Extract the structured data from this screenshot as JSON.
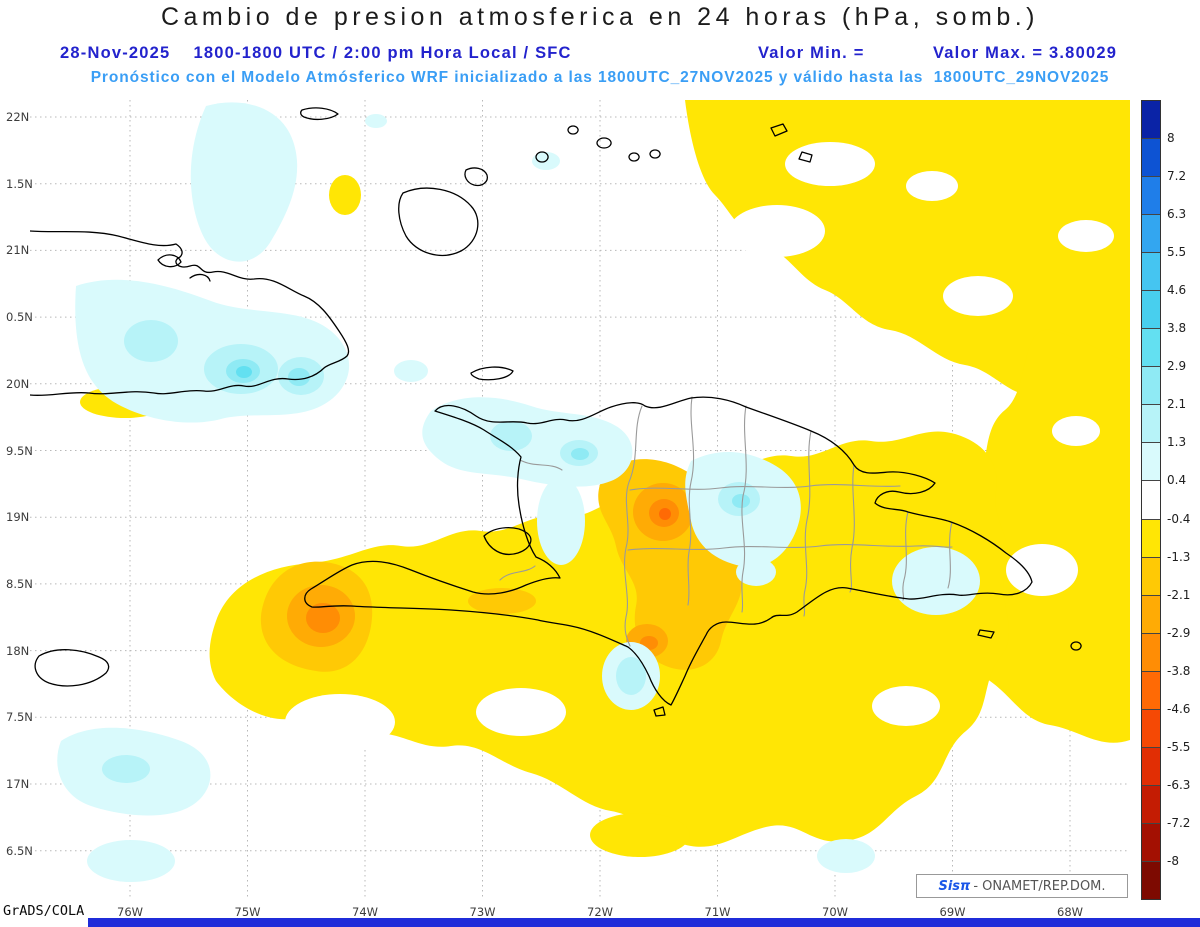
{
  "theme": {
    "title-color": "#1c1c1c",
    "date-blue": "#2323cd",
    "forecast-blue": "#3a9ef5",
    "logo-blue": "#1a56e8",
    "bottom-bar-blue": "#1f2cd9",
    "grid-gray": "#b8b8b8"
  },
  "header": {
    "title": "Cambio de presion atmosferica en 24 horas (hPa, somb.)",
    "date_time": "28-Nov-2025    1800-1800 UTC / 2:00 pm Hora Local / SFC",
    "min_label": "Valor Min. =",
    "min_value": "",
    "max_label": "Valor Max. = 3.80029",
    "forecast_line": "Pronóstico con el Modelo Atmósferico WRF inicializado a las 1800UTC_27NOV2025 y válido hasta las  1800UTC_29NOV2025"
  },
  "axes": {
    "lat_labels": [
      "22N",
      "1.5N",
      "21N",
      "0.5N",
      "20N",
      "9.5N",
      "19N",
      "8.5N",
      "18N",
      "7.5N",
      "17N",
      "6.5N"
    ],
    "lon_labels": [
      "76W",
      "75W",
      "74W",
      "73W",
      "72W",
      "71W",
      "70W",
      "69W",
      "68W"
    ]
  },
  "colorbar": {
    "labels": [
      "8",
      "7.2",
      "6.3",
      "5.5",
      "4.6",
      "3.8",
      "2.9",
      "2.1",
      "1.3",
      "0.4",
      "-0.4",
      "-1.3",
      "-2.1",
      "-2.9",
      "-3.8",
      "-4.6",
      "-5.5",
      "-6.3",
      "-7.2",
      "-8"
    ],
    "colors": [
      "#0a23a6",
      "#0d53d3",
      "#1f7ee9",
      "#33a6f0",
      "#45c5f1",
      "#48cfee",
      "#63e0f1",
      "#8feaf4",
      "#b7f3f8",
      "#d9fafc",
      "#ffffff",
      "#ffe605",
      "#ffc905",
      "#ffab05",
      "#ff8d05",
      "#ff6a05",
      "#f54905",
      "#e12e04",
      "#c41c03",
      "#a31002",
      "#7d0a01"
    ]
  },
  "footer": {
    "credit": "GrADS/COLA",
    "logo_sis": "Sisπ",
    "logo_rest": "- ONAMET/REP.DOM."
  },
  "chart_data": {
    "type": "heatmap",
    "title": "Cambio de presion atmosferica en 24 horas (hPa, somb.)",
    "variable": "Cambio de presion atmosferica en 24 horas",
    "units": "hPa",
    "model": "WRF",
    "run_date": "28-Nov-2025",
    "time_span": "1800-1800 UTC / 2:00 pm Hora Local / SFC",
    "initialized": "1800UTC_27NOV2025",
    "valid_until": "1800UTC_29NOV2025",
    "valor_min": "",
    "valor_max": 3.80029,
    "contour_levels": [
      -8,
      -7.2,
      -6.3,
      -5.5,
      -4.6,
      -3.8,
      -2.9,
      -2.1,
      -1.3,
      -0.4,
      0.4,
      1.3,
      2.1,
      2.9,
      3.8,
      4.6,
      5.5,
      6.3,
      7.2,
      8
    ],
    "x_tick_labels": [
      "76W",
      "75W",
      "74W",
      "73W",
      "72W",
      "71W",
      "70W",
      "69W",
      "68W"
    ],
    "y_tick_labels": [
      "22N",
      "1.5N",
      "21N",
      "0.5N",
      "20N",
      "9.5N",
      "19N",
      "8.5N",
      "18N",
      "7.5N",
      "17N",
      "6.5N"
    ],
    "legend_position": "right",
    "grid": "dotted"
  }
}
